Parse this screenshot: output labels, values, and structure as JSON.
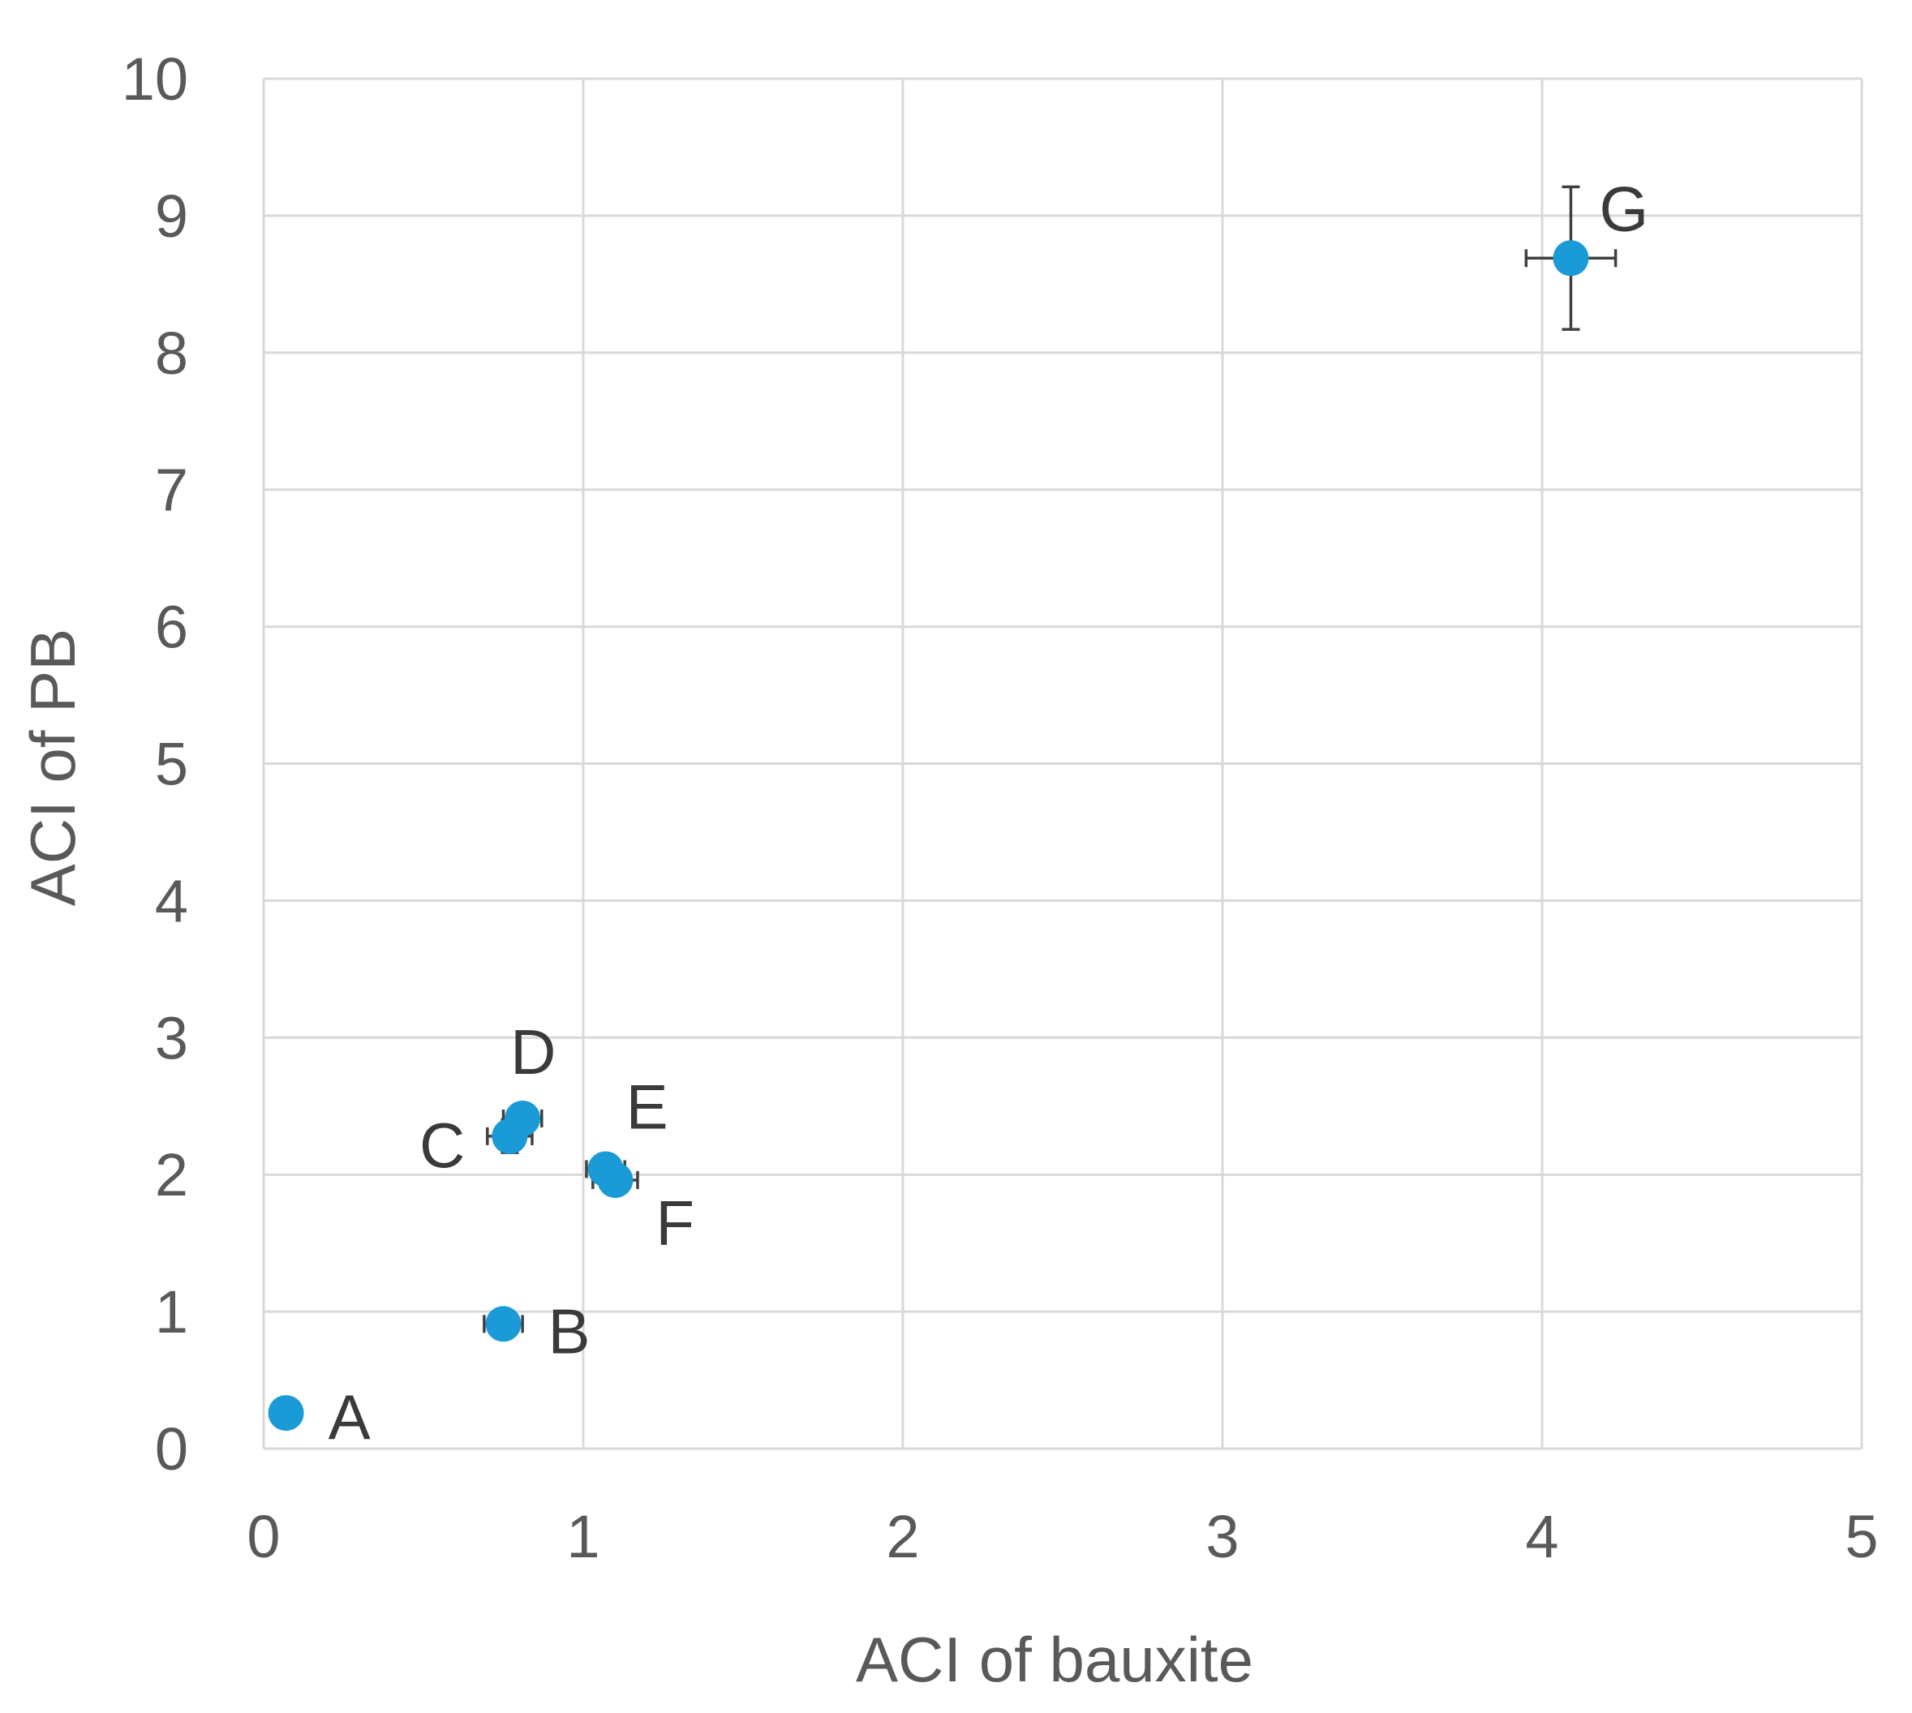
{
  "chart_data": {
    "type": "scatter",
    "title": "",
    "xlabel": "ACI of bauxite",
    "ylabel": "ACI of PB",
    "xlim": [
      0,
      5
    ],
    "ylim": [
      0,
      10
    ],
    "x_ticks": [
      "0",
      "1",
      "2",
      "3",
      "4",
      "5"
    ],
    "y_ticks": [
      "0",
      "1",
      "2",
      "3",
      "4",
      "5",
      "6",
      "7",
      "8",
      "9",
      "10"
    ],
    "grid": true,
    "marker_color": "#1a9ad6",
    "error_bar_color": "#404040",
    "points": [
      {
        "label": "A",
        "x": 0.07,
        "y": 0.26,
        "x_err": 0,
        "y_err": 0
      },
      {
        "label": "B",
        "x": 0.75,
        "y": 0.91,
        "x_err": 0.06,
        "y_err": 0.06
      },
      {
        "label": "C",
        "x": 0.77,
        "y": 2.28,
        "x_err": 0.07,
        "y_err": 0.12
      },
      {
        "label": "D",
        "x": 0.81,
        "y": 2.41,
        "x_err": 0.06,
        "y_err": 0.08
      },
      {
        "label": "E",
        "x": 1.07,
        "y": 2.04,
        "x_err": 0.06,
        "y_err": 0.08
      },
      {
        "label": "F",
        "x": 1.1,
        "y": 1.96,
        "x_err": 0.07,
        "y_err": 0.1
      },
      {
        "label": "G",
        "x": 4.09,
        "y": 8.69,
        "x_err": 0.14,
        "y_err": 0.52
      }
    ]
  }
}
